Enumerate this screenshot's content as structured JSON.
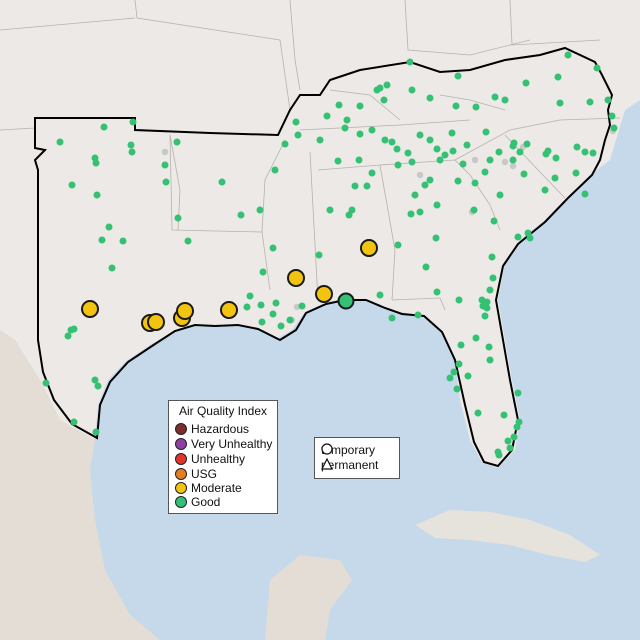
{
  "map": {
    "colors": {
      "ocean": "#c6d9ea",
      "land": "#ece9e6",
      "mexico": "#e3ddd6",
      "cuba": "#e6e2dc",
      "state_border": "#b6b2ae",
      "region_border": "#000000",
      "good": "#35c173",
      "moderate": "#f2c40f",
      "gray": "#c8c8c8"
    }
  },
  "legend": {
    "title": "Air Quality Index",
    "items": [
      {
        "label": "Hazardous",
        "color": "#7e2d2d"
      },
      {
        "label": "Very Unhealthy",
        "color": "#8f3fa1"
      },
      {
        "label": "Unhealthy",
        "color": "#e1342a"
      },
      {
        "label": "USG",
        "color": "#e87c1e"
      },
      {
        "label": "Moderate",
        "color": "#f2c40f"
      },
      {
        "label": "Good",
        "color": "#35c173"
      }
    ]
  },
  "shape_legend": {
    "items": [
      {
        "label": "temporary",
        "shape": "circle-icon"
      },
      {
        "label": "permanent",
        "shape": "triangle-icon"
      }
    ]
  }
}
